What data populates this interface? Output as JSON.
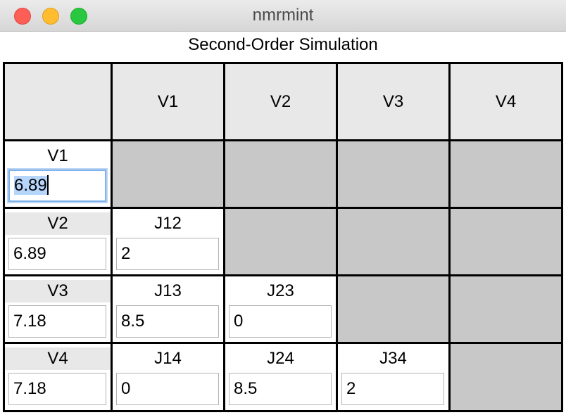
{
  "window": {
    "title": "nmrmint"
  },
  "app_title": "Second-Order Simulation",
  "columns": [
    "V1",
    "V2",
    "V3",
    "V4"
  ],
  "rows": [
    {
      "label": "V1",
      "value": "6.89",
      "couplings": []
    },
    {
      "label": "V2",
      "value": "6.89",
      "couplings": [
        {
          "label": "J12",
          "value": "2"
        }
      ]
    },
    {
      "label": "V3",
      "value": "7.18",
      "couplings": [
        {
          "label": "J13",
          "value": "8.5"
        },
        {
          "label": "J23",
          "value": "0"
        }
      ]
    },
    {
      "label": "V4",
      "value": "7.18",
      "couplings": [
        {
          "label": "J14",
          "value": "0"
        },
        {
          "label": "J24",
          "value": "8.5"
        },
        {
          "label": "J34",
          "value": "2"
        }
      ]
    }
  ]
}
